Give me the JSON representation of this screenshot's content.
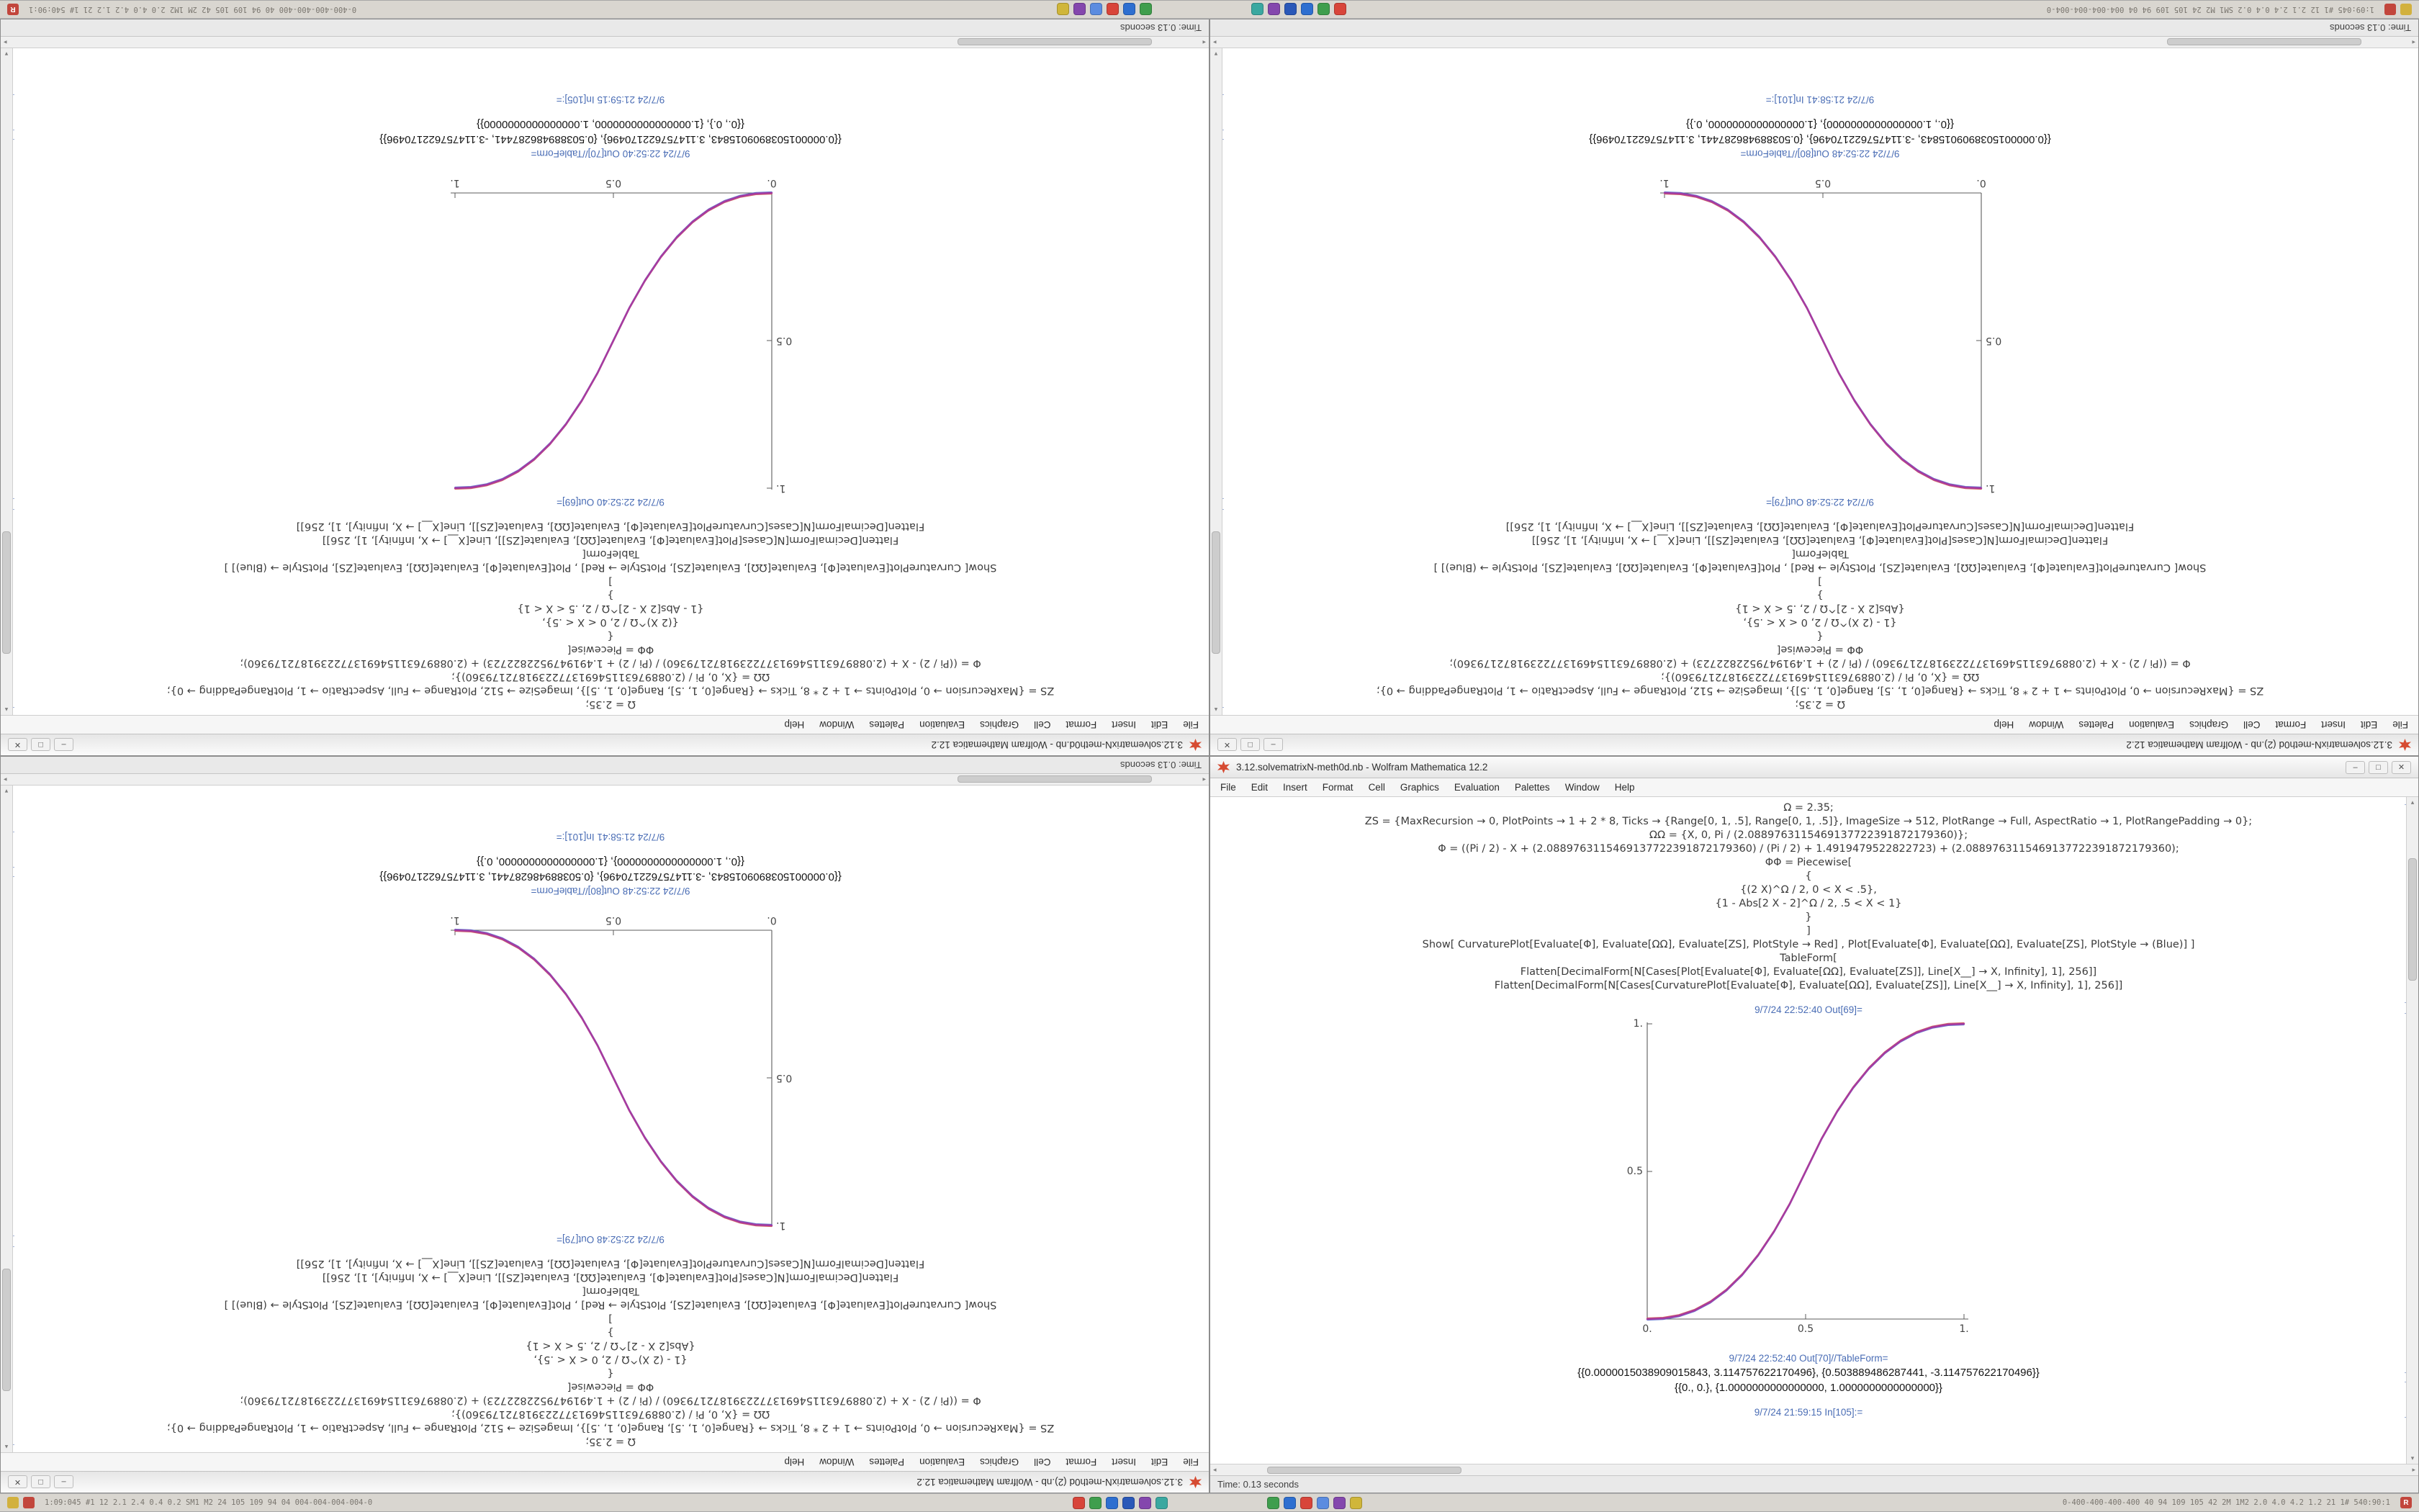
{
  "chrome": {
    "min": "–",
    "max": "□",
    "close": "✕",
    "scroll_up": "▴",
    "scroll_down": "▾",
    "scroll_left": "◂",
    "scroll_right": "▸"
  },
  "menu": {
    "items": [
      "File",
      "Edit",
      "Insert",
      "Format",
      "Cell",
      "Graphics",
      "Evaluation",
      "Palettes",
      "Window",
      "Help"
    ]
  },
  "taskbar": {
    "left_badges": [
      {
        "name": "indicator-icon-yellow",
        "color": "#d2b13e",
        "label": ""
      },
      {
        "name": "indicator-icon-red",
        "color": "#c2463c",
        "label": ""
      }
    ],
    "left_ticker": "1:09:045  #1  12  2.1  2.4  0.4  0.2  SM1  M2  24  105  109  94  04  004-004-004-004-0",
    "app_icons_left": [
      {
        "name": "app-icon-red",
        "color": "#d8453a"
      },
      {
        "name": "app-icon-green",
        "color": "#3f9e4d"
      },
      {
        "name": "app-icon-blue",
        "color": "#2e6fd0"
      },
      {
        "name": "app-icon-navy",
        "color": "#2a58b8"
      },
      {
        "name": "app-icon-purple",
        "color": "#8447ad"
      },
      {
        "name": "app-icon-teal",
        "color": "#3aa8a0"
      }
    ],
    "app_icons_right": [
      {
        "name": "app-icon-green",
        "color": "#3f9e4d"
      },
      {
        "name": "app-icon-blue",
        "color": "#2e6fd0"
      },
      {
        "name": "app-icon-red",
        "color": "#d8453a"
      },
      {
        "name": "app-icon-lightblue",
        "color": "#5b8ce0"
      },
      {
        "name": "app-icon-purple",
        "color": "#8447ad"
      },
      {
        "name": "app-icon-yellow",
        "color": "#d0b63a"
      }
    ],
    "right_ticker": "0-400-400-400-400  40  94  109  105  42  2M  1M2  2.0  4.0  4.2  1.2  21  1#  540:90:1",
    "right_badges": [
      {
        "name": "notification-badge",
        "color": "#c2463c",
        "label": "R"
      }
    ]
  },
  "windows": {
    "a": {
      "title": "3.12.solvematrixN-meth0d.nb - Wolfram Mathematica 12.2",
      "status": "Time: 0.13 seconds",
      "input_lines": [
        "Ω = 2.35;",
        "ZS = {MaxRecursion → 0, PlotPoints → 1 + 2 * 8, Ticks → {Range[0, 1, .5], Range[0, 1, .5]}, ImageSize → 512, PlotRange → Full, AspectRatio → 1, PlotRangePadding → 0};",
        "ΩΩ = {X, 0, Pi / (2.0889763115469137722391872179360)};",
        "Φ = ((Pi / 2) - X + (2.0889763115469137722391872179360) / (Pi / 2) + 1.4919479522822723) + (2.0889763115469137722391872179360);",
        "ΦΦ = Piecewise[",
        "{",
        "{(2 X)^Ω / 2, 0 < X < .5},",
        "{1 - Abs[2 X - 2]^Ω / 2, .5 < X < 1}",
        "}",
        "]",
        "Show[  CurvaturePlot[Evaluate[Φ], Evaluate[ΩΩ], Evaluate[ZS], PlotStyle → Red] ,   Plot[Evaluate[Φ], Evaluate[ΩΩ], Evaluate[ZS], PlotStyle → (Blue)] ]",
        "TableForm[",
        "Flatten[DecimalForm[N[Cases[Plot[Evaluate[Φ], Evaluate[ΩΩ], Evaluate[ZS]], Line[X__] → X, Infinity], 1], 256]]",
        "Flatten[DecimalForm[N[Cases[CurvaturePlot[Evaluate[Φ], Evaluate[ΩΩ], Evaluate[ZS]], Line[X__] → X, Infinity], 1], 256]]"
      ],
      "out_plot_label": "9/7/24 22:52:40 Out[69]=",
      "out_table_label": "9/7/24 22:52:40 Out[70]//TableForm=",
      "table_rows": [
        "{{0.0000015038909015843, 3.114757622170496}, {0.503889486287441, -3.114757622170496}}",
        "{{0., 0.}, {1.0000000000000000, 1.0000000000000000}}"
      ],
      "next_in_label": "9/7/24 21:59:15 In[105]:="
    },
    "b": {
      "title": "3.12.solvematrixN-meth0d (2).nb - Wolfram Mathematica 12.2",
      "status": "Time: 0.13 seconds",
      "input_lines": [
        "Ω = 2.35;",
        "ZS = {MaxRecursion → 0, PlotPoints → 1 + 2 * 8, Ticks → {Range[0, 1, .5], Range[0, 1, .5]}, ImageSize → 512, PlotRange → Full, AspectRatio → 1, PlotRangePadding → 0};",
        "ΩΩ = {X, 0, Pi / (2.0889763115469137722391872179360)};",
        "Φ = ((Pi / 2) - X + (2.0889763115469137722391872179360) / (Pi / 2) + 1.4919479522822723) + (2.0889763115469137722391872179360);",
        "ΦΦ = Piecewise[",
        "{",
        "{1 - (2 X)^Ω / 2, 0 < X < .5},",
        "{Abs[2 X - 2]^Ω / 2, .5 < X < 1}",
        "}",
        "]",
        "Show[  CurvaturePlot[Evaluate[Φ], Evaluate[ΩΩ], Evaluate[ZS], PlotStyle → Red] ,   Plot[Evaluate[Φ], Evaluate[ΩΩ], Evaluate[ZS], PlotStyle → (Blue)] ]",
        "TableForm[",
        "Flatten[DecimalForm[N[Cases[Plot[Evaluate[Φ], Evaluate[ΩΩ], Evaluate[ZS]], Line[X__] → X, Infinity], 1], 256]]",
        "Flatten[DecimalForm[N[Cases[CurvaturePlot[Evaluate[Φ], Evaluate[ΩΩ], Evaluate[ZS]], Line[X__] → X, Infinity], 1], 256]]"
      ],
      "out_plot_label": "9/7/24 22:52:48 Out[79]=",
      "out_table_label": "9/7/24 22:52:48 Out[80]//TableForm=",
      "table_rows": [
        "{{0.0000015038909015843, -3.114757622170496}, {0.503889486287441, 3.114757622170496}}",
        "{{0., 1.0000000000000000}, {1.0000000000000000, 0.}}"
      ],
      "next_in_label": "9/7/24 21:58:41 In[101]:="
    }
  },
  "chart_data": {
    "a": {
      "type": "line",
      "title": "",
      "xlabel": "",
      "ylabel": "",
      "xlim": [
        0,
        1
      ],
      "ylim": [
        0,
        1
      ],
      "xticks": [
        "0.",
        "0.5",
        "1."
      ],
      "yticks": [
        "0.5",
        "1."
      ],
      "grid": false,
      "legend": false,
      "color": "#a63ba0",
      "series_name": "piecewise power sigmoid (ascending)",
      "points": [
        [
          0,
          0
        ],
        [
          0.05,
          0.0022
        ],
        [
          0.1,
          0.0114
        ],
        [
          0.15,
          0.0295
        ],
        [
          0.2,
          0.058
        ],
        [
          0.25,
          0.098
        ],
        [
          0.3,
          0.1505
        ],
        [
          0.35,
          0.2163
        ],
        [
          0.4,
          0.296
        ],
        [
          0.45,
          0.3903
        ],
        [
          0.5,
          0.5
        ],
        [
          0.55,
          0.6097
        ],
        [
          0.6,
          0.704
        ],
        [
          0.65,
          0.7837
        ],
        [
          0.7,
          0.8495
        ],
        [
          0.75,
          0.902
        ],
        [
          0.8,
          0.942
        ],
        [
          0.85,
          0.9705
        ],
        [
          0.9,
          0.9886
        ],
        [
          0.95,
          0.9978
        ],
        [
          1,
          1
        ]
      ]
    },
    "b": {
      "type": "line",
      "title": "",
      "xlabel": "",
      "ylabel": "",
      "xlim": [
        0,
        1
      ],
      "ylim": [
        0,
        1
      ],
      "xticks": [
        "0.",
        "0.5",
        "1."
      ],
      "yticks": [
        "0.5",
        "1."
      ],
      "grid": false,
      "legend": false,
      "color": "#a63ba0",
      "series_name": "piecewise power sigmoid (descending)",
      "points": [
        [
          0,
          1
        ],
        [
          0.05,
          0.9978
        ],
        [
          0.1,
          0.9886
        ],
        [
          0.15,
          0.9705
        ],
        [
          0.2,
          0.942
        ],
        [
          0.25,
          0.902
        ],
        [
          0.3,
          0.8495
        ],
        [
          0.35,
          0.7837
        ],
        [
          0.4,
          0.704
        ],
        [
          0.45,
          0.6097
        ],
        [
          0.5,
          0.5
        ],
        [
          0.55,
          0.3903
        ],
        [
          0.6,
          0.296
        ],
        [
          0.65,
          0.2163
        ],
        [
          0.7,
          0.1505
        ],
        [
          0.75,
          0.098
        ],
        [
          0.8,
          0.058
        ],
        [
          0.85,
          0.0295
        ],
        [
          0.9,
          0.0114
        ],
        [
          0.95,
          0.0022
        ],
        [
          1,
          0
        ]
      ]
    }
  }
}
